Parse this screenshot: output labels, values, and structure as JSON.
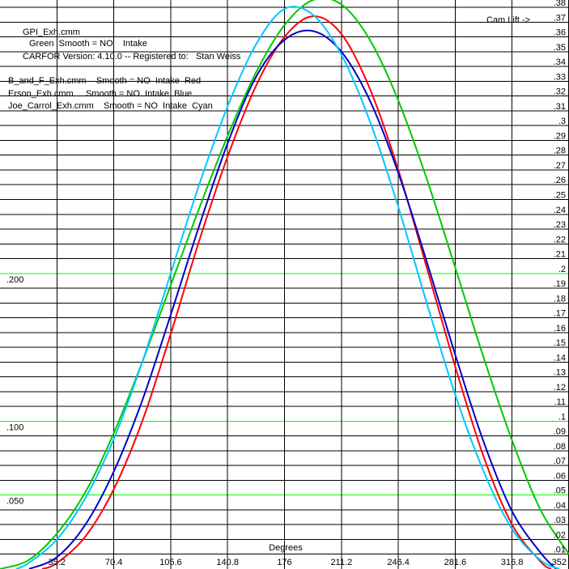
{
  "chart_data": {
    "type": "line",
    "annotations": {
      "file_line": "GPI_Exh.cmm",
      "file_sub_line": "Green  Smooth = NO    Intake",
      "version_line": "CARFOR Version: 4.10.0 -- Registered to:   Stan Weiss",
      "overlay_lines": [
        "B_and_F_Exh.cmm    Smooth = NO  Intake  Red",
        "Erson_Exh.cmm     Smooth = NO  Intake  Blue",
        "Joe_Carrol_Exh.cmm    Smooth = NO  Intake  Cyan"
      ],
      "cam_lift_label": "Cam Lift ->"
    },
    "xlabel": "Degrees",
    "xlim": [
      0,
      352
    ],
    "ylim": [
      0,
      0.385
    ],
    "x_ticks": [
      "35.2",
      "70.4",
      "105.6",
      "140.8",
      "176",
      "211.2",
      "246.4",
      "281.6",
      "316.8",
      "352"
    ],
    "x_tick_values": [
      35.2,
      70.4,
      105.6,
      140.8,
      176,
      211.2,
      246.4,
      281.6,
      316.8,
      352
    ],
    "y_ticks_right": [
      ".01",
      ".02",
      ".03",
      ".04",
      ".05",
      ".06",
      ".07",
      ".08",
      ".09",
      ".1",
      ".11",
      ".12",
      ".13",
      ".14",
      ".15",
      ".16",
      ".17",
      ".18",
      ".19",
      ".2",
      ".21",
      ".22",
      ".23",
      ".24",
      ".25",
      ".26",
      ".27",
      ".28",
      ".29",
      ".3",
      ".31",
      ".32",
      ".33",
      ".34",
      ".35",
      ".36",
      ".37",
      ".38"
    ],
    "y_tick_values_right": [
      0.01,
      0.02,
      0.03,
      0.04,
      0.05,
      0.06,
      0.07,
      0.08,
      0.09,
      0.1,
      0.11,
      0.12,
      0.13,
      0.14,
      0.15,
      0.16,
      0.17,
      0.18,
      0.19,
      0.2,
      0.21,
      0.22,
      0.23,
      0.24,
      0.25,
      0.26,
      0.27,
      0.28,
      0.29,
      0.3,
      0.31,
      0.32,
      0.33,
      0.34,
      0.35,
      0.36,
      0.37,
      0.38
    ],
    "y_ticks_left": [
      ".050",
      ".100",
      ".200"
    ],
    "y_tick_values_left": [
      0.05,
      0.1,
      0.2
    ],
    "grid": true,
    "green_gridlines": [
      0.05,
      0.1,
      0.2
    ],
    "colors": {
      "background": "#ffffff",
      "grid": "#000000",
      "grid_highlight": "#00ff00",
      "text": "#000000"
    },
    "series": [
      {
        "color": "#00c800",
        "x": [
          0,
          17.6,
          35.2,
          52.8,
          70.4,
          88,
          105.6,
          123.2,
          140.8,
          158.4,
          176,
          193.6,
          211.2,
          228.8,
          246.4,
          264,
          281.6,
          299.2,
          316.8,
          334.4,
          352
        ],
        "y": [
          0.0,
          0.006,
          0.024,
          0.052,
          0.092,
          0.14,
          0.192,
          0.244,
          0.293,
          0.336,
          0.368,
          0.385,
          0.382,
          0.358,
          0.317,
          0.264,
          0.204,
          0.143,
          0.087,
          0.04,
          0.01
        ]
      },
      {
        "color": "#ff0000",
        "x": [
          26,
          35.2,
          52.8,
          70.4,
          88,
          105.6,
          123.2,
          140.8,
          158.4,
          176,
          193.6,
          211.2,
          228.8,
          246.4,
          264,
          281.6,
          299.2,
          316.8,
          334.4,
          341
        ],
        "y": [
          0.0,
          0.004,
          0.022,
          0.054,
          0.1,
          0.159,
          0.222,
          0.279,
          0.327,
          0.36,
          0.374,
          0.362,
          0.325,
          0.27,
          0.204,
          0.137,
          0.076,
          0.03,
          0.005,
          0.0
        ]
      },
      {
        "color": "#0000c8",
        "x": [
          18,
          35.2,
          52.8,
          70.4,
          88,
          105.6,
          123.2,
          140.8,
          158.4,
          176,
          193.6,
          211.2,
          228.8,
          246.4,
          264,
          281.6,
          299.2,
          316.8,
          334.4,
          344
        ],
        "y": [
          0.0,
          0.008,
          0.03,
          0.066,
          0.114,
          0.172,
          0.232,
          0.288,
          0.333,
          0.358,
          0.364,
          0.35,
          0.317,
          0.268,
          0.208,
          0.145,
          0.086,
          0.039,
          0.011,
          0.0
        ]
      },
      {
        "color": "#00c8ff",
        "x": [
          10,
          17.6,
          35.2,
          52.8,
          70.4,
          88,
          105.6,
          123.2,
          140.8,
          158.4,
          176,
          193.6,
          211.2,
          228.8,
          246.4,
          264,
          281.6,
          299.2,
          316.8,
          334.4,
          346
        ],
        "y": [
          0.0,
          0.004,
          0.02,
          0.048,
          0.088,
          0.14,
          0.2,
          0.26,
          0.313,
          0.355,
          0.379,
          0.375,
          0.348,
          0.303,
          0.245,
          0.18,
          0.118,
          0.066,
          0.027,
          0.006,
          0.0
        ]
      }
    ]
  }
}
